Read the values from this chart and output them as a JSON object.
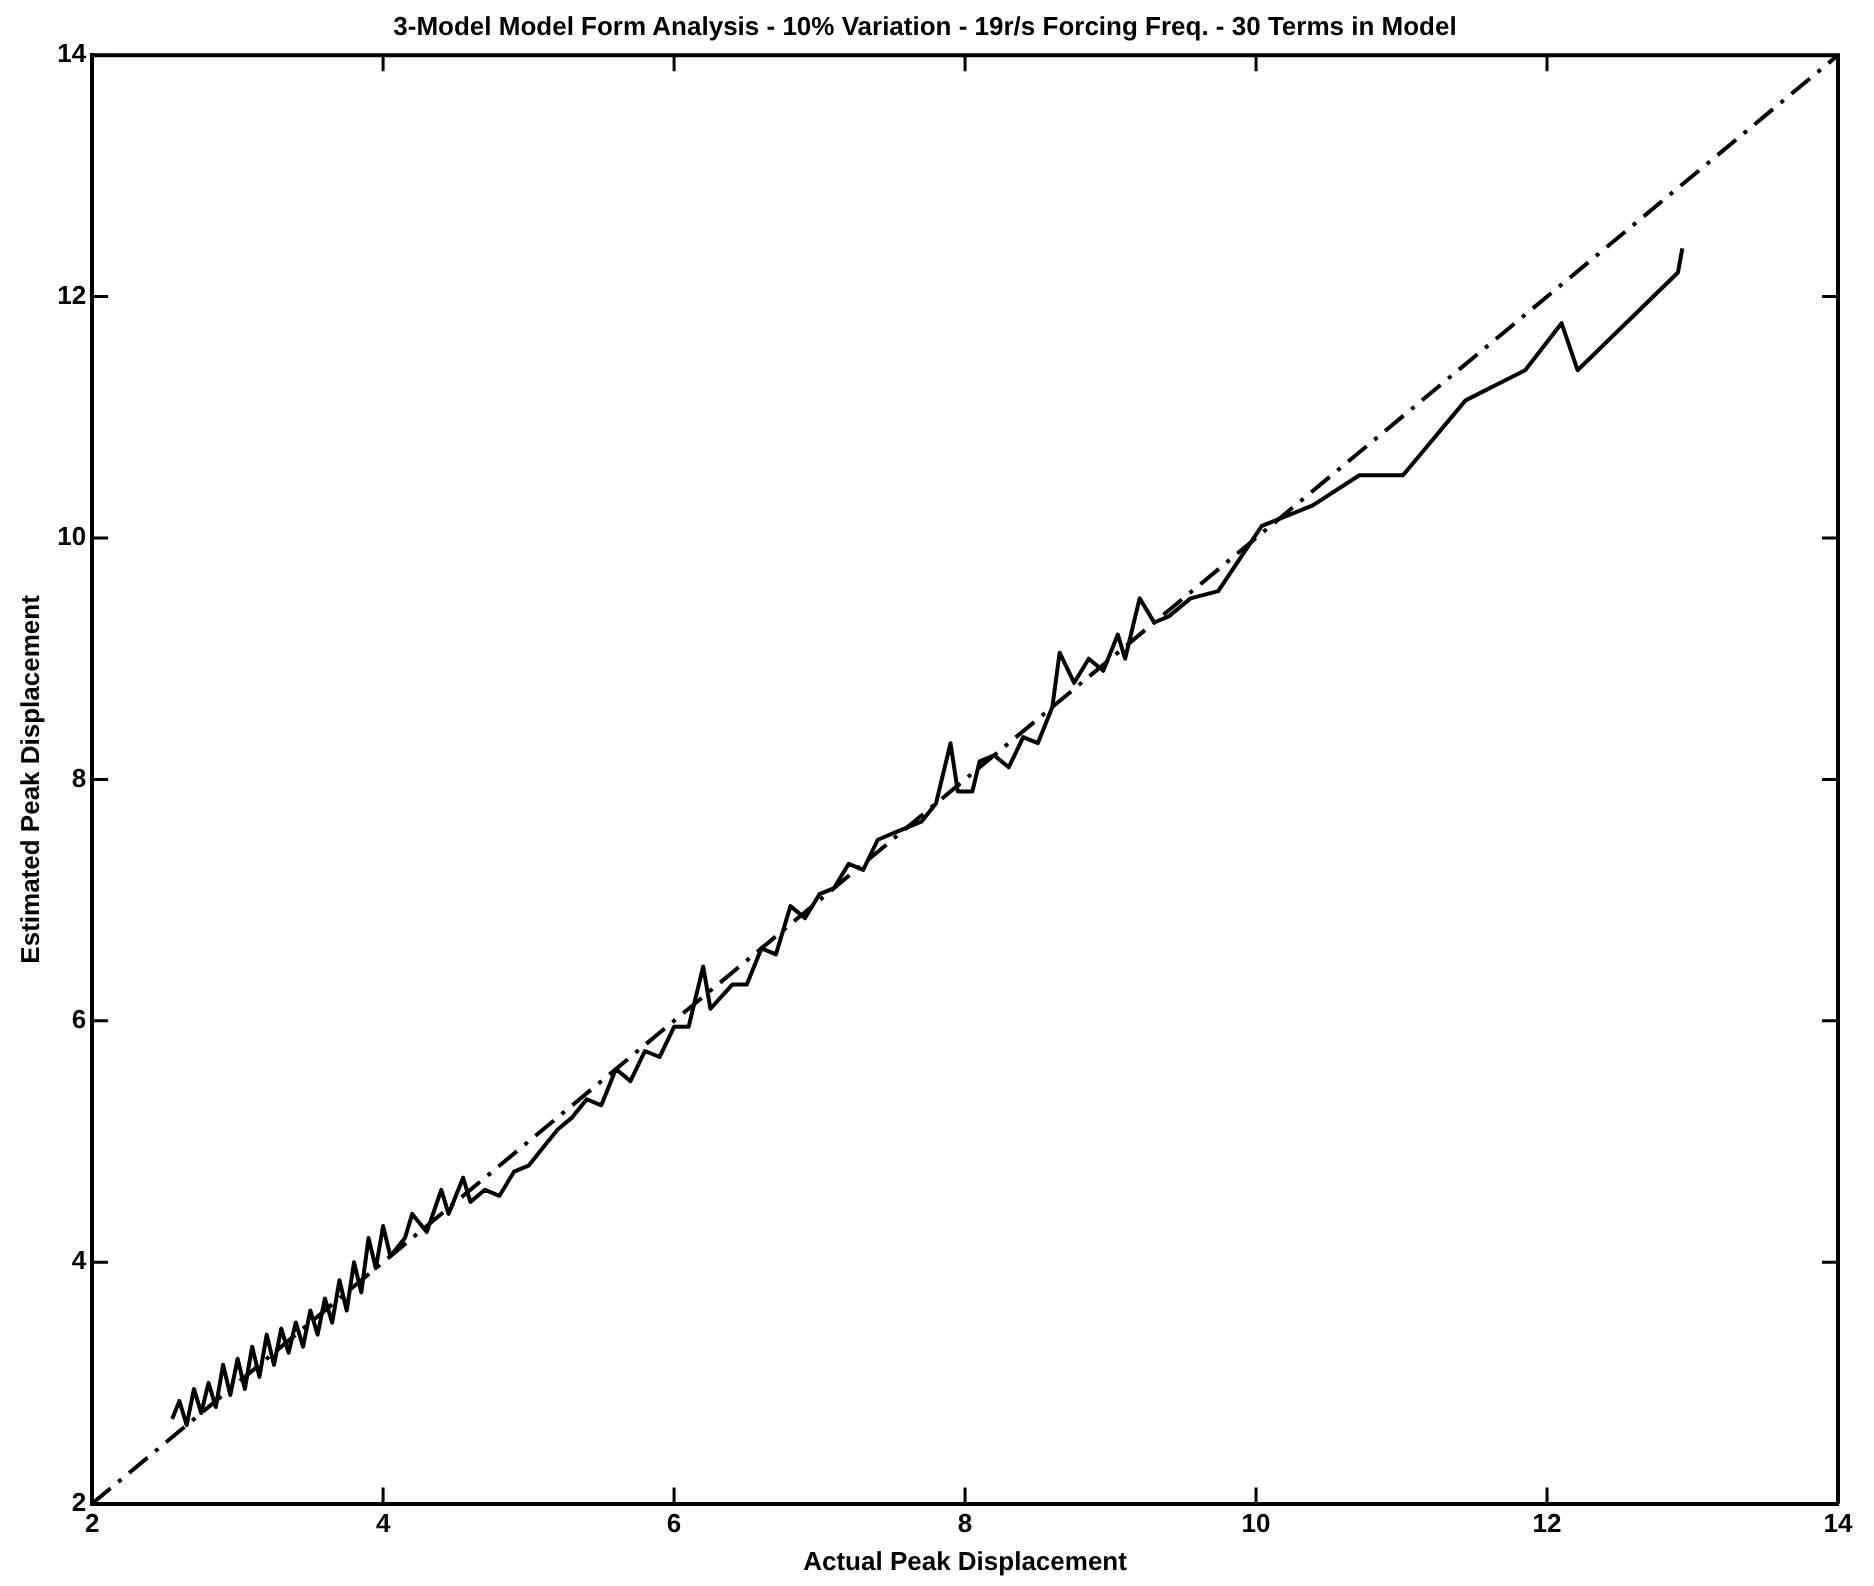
{
  "chart_data": {
    "type": "line",
    "title": "3-Model Model Form Analysis - 10% Variation - 19r/s Forcing Freq. - 30 Terms in Model",
    "xlabel": "Actual Peak Displacement",
    "ylabel": "Estimated Peak Displacement",
    "xlim": [
      2,
      14
    ],
    "ylim": [
      2,
      14
    ],
    "xticks": [
      2,
      4,
      6,
      8,
      10,
      12,
      14
    ],
    "yticks": [
      2,
      4,
      6,
      8,
      10,
      12,
      14
    ],
    "grid": false,
    "legend": false,
    "marker": "none",
    "series": [
      {
        "color": "#000000",
        "line_style": "solid",
        "x": [
          2.55,
          2.6,
          2.65,
          2.7,
          2.75,
          2.8,
          2.85,
          2.9,
          2.95,
          3.0,
          3.05,
          3.1,
          3.15,
          3.2,
          3.25,
          3.3,
          3.35,
          3.4,
          3.45,
          3.5,
          3.55,
          3.6,
          3.65,
          3.7,
          3.75,
          3.8,
          3.85,
          3.9,
          3.95,
          4.0,
          4.05,
          4.15,
          4.2,
          4.3,
          4.4,
          4.45,
          4.55,
          4.6,
          4.7,
          4.8,
          4.9,
          5.0,
          5.1,
          5.2,
          5.3,
          5.4,
          5.5,
          5.6,
          5.7,
          5.8,
          5.9,
          6.0,
          6.1,
          6.2,
          6.25,
          6.4,
          6.5,
          6.6,
          6.7,
          6.8,
          6.9,
          7.0,
          7.1,
          7.2,
          7.3,
          7.4,
          7.5,
          7.6,
          7.7,
          7.8,
          7.9,
          7.95,
          8.05,
          8.1,
          8.2,
          8.3,
          8.4,
          8.5,
          8.6,
          8.65,
          8.75,
          8.85,
          8.95,
          9.05,
          9.1,
          9.2,
          9.3,
          9.4,
          9.55,
          9.74,
          10.04,
          10.39,
          10.71,
          11.01,
          11.44,
          11.85,
          12.1,
          12.21,
          12.9,
          12.93
        ],
        "values": [
          2.7,
          2.85,
          2.65,
          2.95,
          2.75,
          3.0,
          2.8,
          3.15,
          2.9,
          3.2,
          2.95,
          3.3,
          3.05,
          3.4,
          3.15,
          3.45,
          3.25,
          3.5,
          3.3,
          3.6,
          3.4,
          3.7,
          3.5,
          3.85,
          3.6,
          4.0,
          3.75,
          4.2,
          3.95,
          4.3,
          4.05,
          4.2,
          4.4,
          4.25,
          4.6,
          4.4,
          4.7,
          4.5,
          4.6,
          4.55,
          4.75,
          4.8,
          4.95,
          5.1,
          5.2,
          5.35,
          5.3,
          5.6,
          5.5,
          5.75,
          5.7,
          5.95,
          5.95,
          6.45,
          6.1,
          6.3,
          6.3,
          6.6,
          6.55,
          6.95,
          6.85,
          7.05,
          7.1,
          7.3,
          7.25,
          7.5,
          7.55,
          7.6,
          7.65,
          7.8,
          8.3,
          7.9,
          7.9,
          8.15,
          8.2,
          8.1,
          8.35,
          8.3,
          8.6,
          9.05,
          8.8,
          9.0,
          8.9,
          9.2,
          9.0,
          9.5,
          9.3,
          9.35,
          9.5,
          9.56,
          10.1,
          10.27,
          10.52,
          10.52,
          11.14,
          11.39,
          11.78,
          11.39,
          12.2,
          12.4
        ]
      },
      {
        "color": "#000000",
        "line_style": "dashed",
        "x": [
          2,
          14
        ],
        "values": [
          2,
          14
        ]
      }
    ]
  }
}
